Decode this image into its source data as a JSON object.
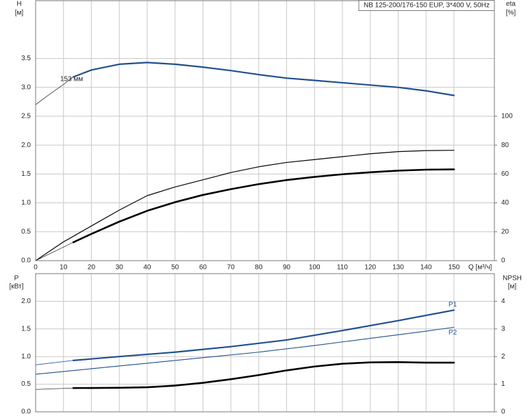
{
  "chart_data": [
    {
      "type": "line",
      "title": "NB 125-200/176-150 EUP, 3*400 V, 50Hz",
      "ylabel": "H",
      "ylabel_unit": "[м]",
      "y2label": "eta",
      "y2label_unit": "[%]",
      "xlabel": "Q [м³/ч]",
      "annotation": "153 мм",
      "xlim": [
        0,
        164.5
      ],
      "xticks": [
        0,
        10,
        20,
        30,
        40,
        50,
        60,
        70,
        80,
        90,
        100,
        110,
        120,
        130,
        140,
        150
      ],
      "ylim": [
        0,
        4.5
      ],
      "yticks": [
        {
          "value": 0,
          "label": "0.0"
        },
        0.5,
        {
          "value": 1,
          "label": "1.0"
        },
        1.5,
        {
          "value": 2,
          "label": "2.0"
        },
        2.5,
        {
          "value": 3,
          "label": "3.0"
        },
        3.5
      ],
      "y2lim": [
        0,
        180
      ],
      "y2ticks": [
        0,
        20,
        40,
        60,
        80,
        100
      ],
      "grid": true,
      "series": [
        {
          "color": "#1f4f8f",
          "line_width": 2.2,
          "x": [
            13.5,
            20,
            30,
            40,
            50,
            60,
            70,
            80,
            90,
            100,
            110,
            120,
            130,
            140,
            150
          ],
          "values": [
            3.18,
            3.3,
            3.4,
            3.43,
            3.4,
            3.35,
            3.29,
            3.22,
            3.16,
            3.12,
            3.08,
            3.04,
            3.0,
            2.94,
            2.86
          ]
        },
        {
          "color": "#333333",
          "line_width": 0.8,
          "x": [
            0,
            5,
            10,
            13.5
          ],
          "values": [
            2.7,
            2.88,
            3.05,
            3.18
          ]
        },
        {
          "color": "#000000",
          "line_width": 1.2,
          "axis": "y2",
          "x": [
            0,
            10,
            20,
            30,
            40,
            50,
            60,
            70,
            80,
            90,
            100,
            110,
            120,
            130,
            140,
            150
          ],
          "values": [
            0,
            13,
            24,
            35,
            45,
            51,
            56,
            61,
            65,
            68,
            70,
            72,
            74,
            75.5,
            76.2,
            76.4
          ]
        },
        {
          "color": "#000000",
          "line_width": 2.6,
          "axis": "y2",
          "x": [
            13.5,
            20,
            30,
            40,
            50,
            60,
            70,
            80,
            90,
            100,
            110,
            120,
            130,
            140,
            150
          ],
          "values": [
            12.7,
            18.5,
            27,
            34.5,
            40.5,
            45.5,
            49.5,
            53,
            55.8,
            58,
            59.8,
            61.2,
            62.3,
            63,
            63.2
          ]
        },
        {
          "color": "#333333",
          "line_width": 0.8,
          "axis": "y2",
          "x": [
            0,
            13.5
          ],
          "values": [
            0,
            12.7
          ]
        }
      ]
    },
    {
      "type": "line",
      "ylabel": "P",
      "ylabel_unit": "[кВт]",
      "y2label": "NPSH",
      "y2label_unit": "[м]",
      "xlim": [
        0,
        164.5
      ],
      "ylim": [
        0,
        2.5
      ],
      "yticks": [
        {
          "value": 0,
          "label": "0.0"
        },
        0.5,
        {
          "value": 1,
          "label": "1.0"
        },
        1.5,
        {
          "value": 2,
          "label": "2.0"
        }
      ],
      "y2lim": [
        0,
        5
      ],
      "y2ticks": [
        0,
        1,
        2,
        3,
        4
      ],
      "grid": true,
      "series": [
        {
          "name": "P1",
          "color": "#1f4f8f",
          "line_width": 2.2,
          "x": [
            13.5,
            30,
            50,
            70,
            90,
            110,
            130,
            150
          ],
          "values": [
            0.93,
            1.0,
            1.08,
            1.18,
            1.3,
            1.47,
            1.65,
            1.84
          ]
        },
        {
          "color": "#1f4f8f",
          "line_width": 0.8,
          "x": [
            0,
            13.5
          ],
          "values": [
            0.85,
            0.93
          ]
        },
        {
          "name": "P2",
          "color": "#1f4f8f",
          "line_width": 1.1,
          "x": [
            0,
            20,
            40,
            60,
            80,
            100,
            120,
            140,
            150
          ],
          "values": [
            0.68,
            0.78,
            0.88,
            0.98,
            1.08,
            1.2,
            1.33,
            1.46,
            1.53
          ]
        },
        {
          "color": "#000000",
          "line_width": 2.6,
          "axis": "y2",
          "x": [
            13.5,
            30,
            40,
            50,
            60,
            70,
            80,
            90,
            100,
            110,
            120,
            130,
            140,
            150
          ],
          "values": [
            0.86,
            0.87,
            0.89,
            0.95,
            1.05,
            1.18,
            1.33,
            1.5,
            1.64,
            1.74,
            1.79,
            1.8,
            1.78,
            1.78
          ]
        },
        {
          "color": "#333333",
          "line_width": 0.8,
          "axis": "y2",
          "x": [
            0,
            13.5
          ],
          "values": [
            0.81,
            0.86
          ]
        }
      ]
    }
  ]
}
